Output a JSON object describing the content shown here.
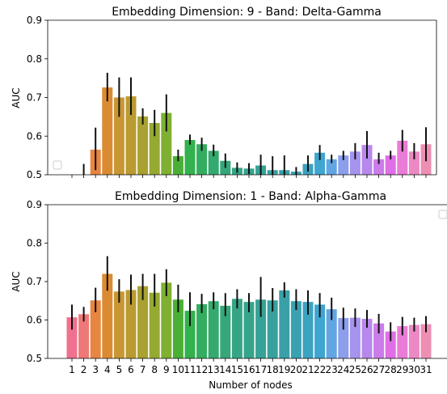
{
  "chart_data": [
    {
      "type": "bar",
      "title": "Embedding Dimension: 9 - Band: Delta-Gamma",
      "xlabel": "",
      "ylabel": "AUC",
      "ylim": [
        0.5,
        0.9
      ],
      "yticks": [
        "0.5",
        "0.6",
        "0.7",
        "0.8",
        "0.9"
      ],
      "show_xticklabels": false,
      "grid": false,
      "legend": "empty box, lower-left",
      "categories": [
        "1",
        "2",
        "3",
        "4",
        "5",
        "6",
        "7",
        "8",
        "9",
        "10",
        "11",
        "12",
        "13",
        "14",
        "15",
        "16",
        "17",
        "18",
        "19",
        "20",
        "21",
        "22",
        "23",
        "24",
        "25",
        "26",
        "27",
        "28",
        "29",
        "30",
        "31"
      ],
      "values": [
        0.488,
        0.486,
        0.565,
        0.726,
        0.7,
        0.703,
        0.651,
        0.634,
        0.66,
        0.548,
        0.59,
        0.579,
        0.562,
        0.536,
        0.518,
        0.516,
        0.524,
        0.512,
        0.512,
        0.508,
        0.528,
        0.557,
        0.54,
        0.55,
        0.56,
        0.577,
        0.54,
        0.55,
        0.588,
        0.56,
        0.579
      ],
      "err_low": [
        0.478,
        0.47,
        0.512,
        0.69,
        0.65,
        0.655,
        0.63,
        0.6,
        0.612,
        0.535,
        0.578,
        0.562,
        0.548,
        0.518,
        0.505,
        0.502,
        0.5,
        0.497,
        0.497,
        0.5,
        0.508,
        0.538,
        0.53,
        0.538,
        0.54,
        0.542,
        0.528,
        0.54,
        0.56,
        0.54,
        0.535
      ],
      "err_high": [
        0.498,
        0.528,
        0.622,
        0.764,
        0.752,
        0.752,
        0.672,
        0.668,
        0.708,
        0.565,
        0.604,
        0.596,
        0.578,
        0.555,
        0.532,
        0.53,
        0.552,
        0.548,
        0.55,
        0.52,
        0.55,
        0.577,
        0.552,
        0.562,
        0.582,
        0.613,
        0.557,
        0.562,
        0.616,
        0.582,
        0.623
      ]
    },
    {
      "type": "bar",
      "title": "Embedding Dimension: 1 - Band: Alpha-Gamma",
      "xlabel": "Number of nodes",
      "ylabel": "AUC",
      "ylim": [
        0.5,
        0.9
      ],
      "yticks": [
        "0.5",
        "0.6",
        "0.7",
        "0.8",
        "0.9"
      ],
      "show_xticklabels": true,
      "grid": false,
      "legend": "empty box, upper-right",
      "categories": [
        "1",
        "2",
        "3",
        "4",
        "5",
        "6",
        "7",
        "8",
        "9",
        "10",
        "11",
        "12",
        "13",
        "14",
        "15",
        "16",
        "17",
        "18",
        "19",
        "20",
        "21",
        "22",
        "23",
        "24",
        "25",
        "26",
        "27",
        "28",
        "29",
        "30",
        "31"
      ],
      "values": [
        0.607,
        0.615,
        0.651,
        0.72,
        0.674,
        0.678,
        0.688,
        0.671,
        0.697,
        0.653,
        0.624,
        0.641,
        0.649,
        0.637,
        0.655,
        0.647,
        0.653,
        0.651,
        0.677,
        0.649,
        0.647,
        0.64,
        0.628,
        0.605,
        0.606,
        0.603,
        0.591,
        0.57,
        0.584,
        0.587,
        0.589
      ],
      "err_low": [
        0.575,
        0.596,
        0.62,
        0.676,
        0.645,
        0.64,
        0.652,
        0.635,
        0.662,
        0.62,
        0.584,
        0.618,
        0.628,
        0.61,
        0.63,
        0.62,
        0.608,
        0.622,
        0.658,
        0.626,
        0.614,
        0.607,
        0.6,
        0.575,
        0.582,
        0.58,
        0.565,
        0.545,
        0.56,
        0.57,
        0.568
      ],
      "err_high": [
        0.64,
        0.634,
        0.684,
        0.766,
        0.706,
        0.718,
        0.72,
        0.72,
        0.732,
        0.692,
        0.672,
        0.668,
        0.672,
        0.67,
        0.68,
        0.67,
        0.712,
        0.683,
        0.698,
        0.68,
        0.677,
        0.67,
        0.658,
        0.632,
        0.63,
        0.626,
        0.616,
        0.594,
        0.608,
        0.606,
        0.61
      ]
    }
  ],
  "palette": [
    "#f0718f",
    "#ee7875",
    "#e88540",
    "#da8b32",
    "#c99634",
    "#b99b31",
    "#a9a131",
    "#96a931",
    "#7fb031",
    "#4aaf36",
    "#33b14e",
    "#33ad5f",
    "#34aa6e",
    "#35a77b",
    "#36a585",
    "#36a48d",
    "#37a295",
    "#38a19e",
    "#39a0a7",
    "#3aa1b1",
    "#3ba3bf",
    "#3ea6d0",
    "#62a5e3",
    "#8c9eec",
    "#a593ed",
    "#b887ec",
    "#cb7ce9",
    "#df6ee7",
    "#e97cd6",
    "#ec88c4",
    "#ec8fb3"
  ]
}
